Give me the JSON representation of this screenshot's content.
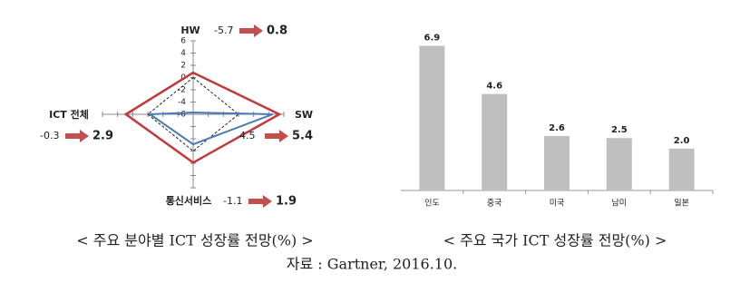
{
  "chart_data": [
    {
      "type": "radar",
      "title": "< 주요 분야별 ICT 성장률 전망(%) >",
      "categories": [
        "HW",
        "SW",
        "통신서비스",
        "ICT 전체"
      ],
      "series": [
        {
          "color": "#4a7ab8",
          "values": [
            -5.7,
            4.5,
            -1.1,
            -0.3
          ]
        },
        {
          "color": "#c0393b",
          "values": [
            0.8,
            5.4,
            1.9,
            2.9
          ]
        }
      ],
      "ylim": [
        -6,
        6
      ],
      "yticks": [
        6,
        4,
        2,
        0,
        -2,
        -4,
        -6
      ],
      "zero_line": true
    },
    {
      "type": "bar",
      "title": "< 주요 국가 ICT 성장률 전망(%) >",
      "categories": [
        "인도",
        "중국",
        "미국",
        "남미",
        "일본"
      ],
      "values": [
        6.9,
        4.6,
        2.6,
        2.5,
        2.0
      ],
      "value_labels": [
        "6.9",
        "4.6",
        "2.6",
        "2.5",
        "2.0"
      ],
      "color": "#bfbfbf",
      "ylim": [
        0,
        8
      ]
    }
  ],
  "source": "자료 : Gartner, 2016.10."
}
